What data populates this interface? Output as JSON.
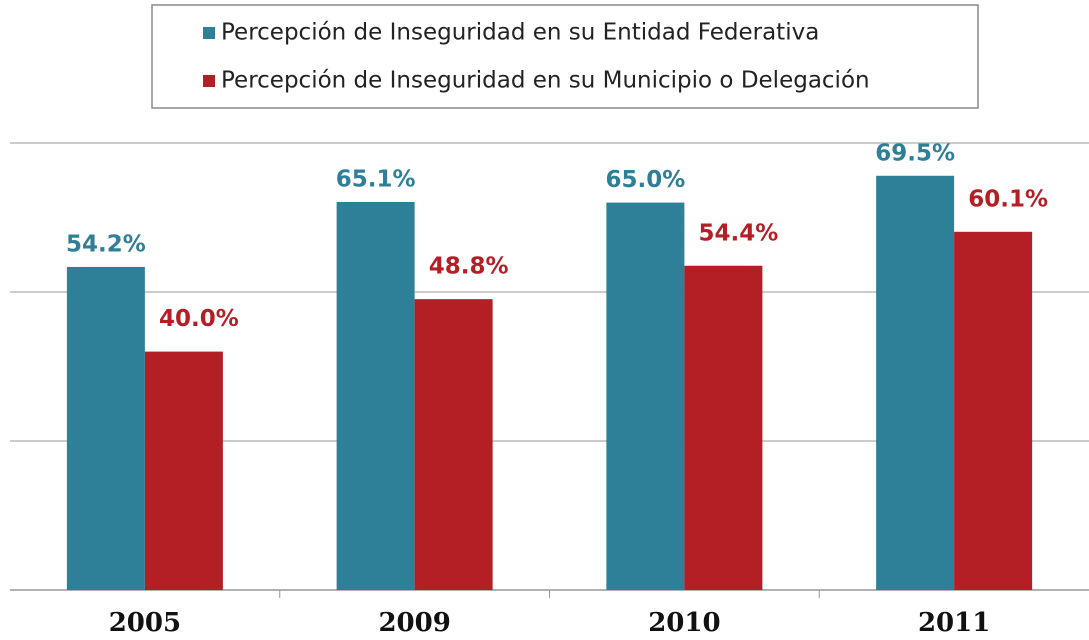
{
  "chart_data": {
    "type": "bar",
    "categories": [
      "2005",
      "2009",
      "2010",
      "2011"
    ],
    "series": [
      {
        "name": "Percepción de Inseguridad en su Entidad Federativa",
        "color": "#2e7f98",
        "values": [
          54.2,
          65.1,
          65.0,
          69.5
        ],
        "value_labels": [
          "54.2%",
          "65.1%",
          "65.0%",
          "69.5%"
        ]
      },
      {
        "name": "Percepción de Inseguridad en su Municipio o Delegación",
        "color": "#b41f26",
        "values": [
          40.0,
          48.8,
          54.4,
          60.1
        ],
        "value_labels": [
          "40.0%",
          "48.8%",
          "54.4%",
          "60.1%"
        ]
      }
    ],
    "ylim": [
      0,
      75
    ],
    "yticks": [
      0,
      25,
      50,
      75
    ],
    "grid": true,
    "legend": "top"
  }
}
